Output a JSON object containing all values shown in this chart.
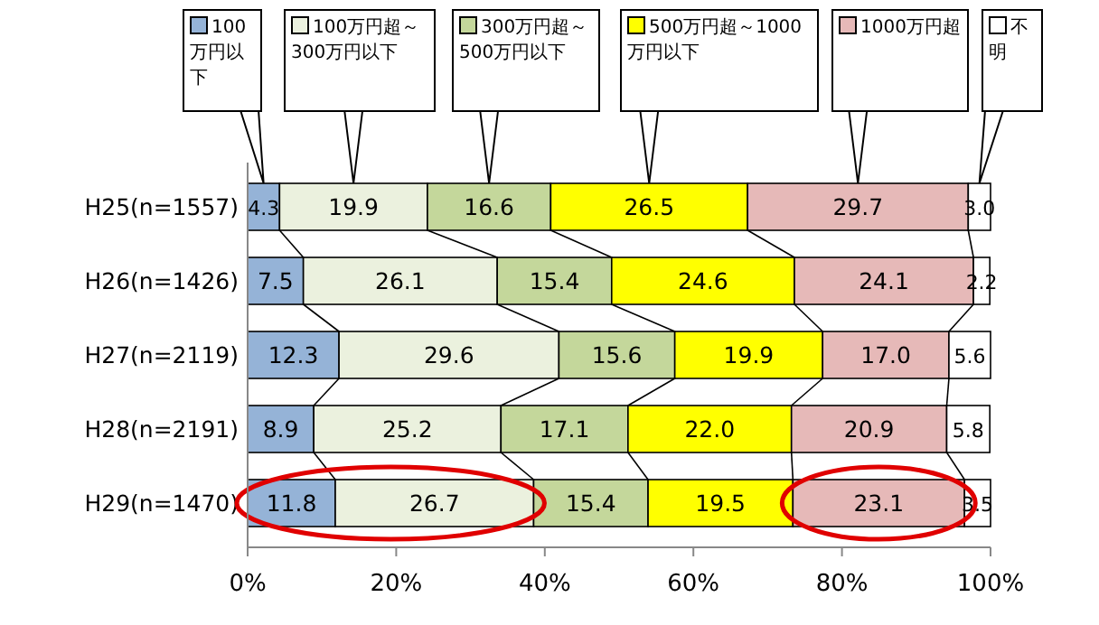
{
  "chart_data": {
    "type": "bar",
    "orientation": "horizontal",
    "stacked": true,
    "legend": "top",
    "categories": [
      "H25(n=1557)",
      "H26(n=1426)",
      "H27(n=2119)",
      "H28(n=2191)",
      "H29(n=1470)"
    ],
    "series": [
      {
        "name": "100万円以下",
        "color": "#95b3d7",
        "values": [
          4.3,
          7.5,
          12.3,
          8.9,
          11.8
        ],
        "value_labels": [
          "4.3",
          "7.5",
          "12.3",
          "8.9",
          "11.8"
        ]
      },
      {
        "name": "100万円超～300万円以下",
        "color": "#ebf1de",
        "values": [
          19.9,
          26.1,
          29.6,
          25.2,
          26.7
        ],
        "value_labels": [
          "19.9",
          "26.1",
          "29.6",
          "25.2",
          "26.7"
        ]
      },
      {
        "name": "300万円超～500万円以下",
        "color": "#c4d79b",
        "values": [
          16.6,
          15.4,
          15.6,
          17.1,
          15.4
        ],
        "value_labels": [
          "16.6",
          "15.4",
          "15.6",
          "17.1",
          "15.4"
        ]
      },
      {
        "name": "500万円超～1000万円以下",
        "color": "#ffff00",
        "values": [
          26.5,
          24.6,
          19.9,
          22.0,
          19.5
        ],
        "value_labels": [
          "26.5",
          "24.6",
          "19.9",
          "22.0",
          "19.5"
        ]
      },
      {
        "name": "1000万円超",
        "color": "#e6b9b8",
        "values": [
          29.7,
          24.1,
          17.0,
          20.9,
          23.1
        ],
        "value_labels": [
          "29.7",
          "24.1",
          "17.0",
          "20.9",
          "23.1"
        ]
      },
      {
        "name": "不明",
        "color": "#ffffff",
        "values": [
          3.0,
          2.2,
          5.6,
          5.8,
          3.5
        ],
        "value_labels": [
          "3.0",
          "2.2",
          "5.6",
          "5.8",
          "3.5"
        ]
      }
    ],
    "xlim": [
      0,
      100
    ],
    "xticks": [
      {
        "value": 0,
        "label": "0%"
      },
      {
        "value": 20,
        "label": "20%"
      },
      {
        "value": 40,
        "label": "40%"
      },
      {
        "value": 60,
        "label": "60%"
      },
      {
        "value": 80,
        "label": "80%"
      },
      {
        "value": 100,
        "label": "100%"
      }
    ]
  }
}
